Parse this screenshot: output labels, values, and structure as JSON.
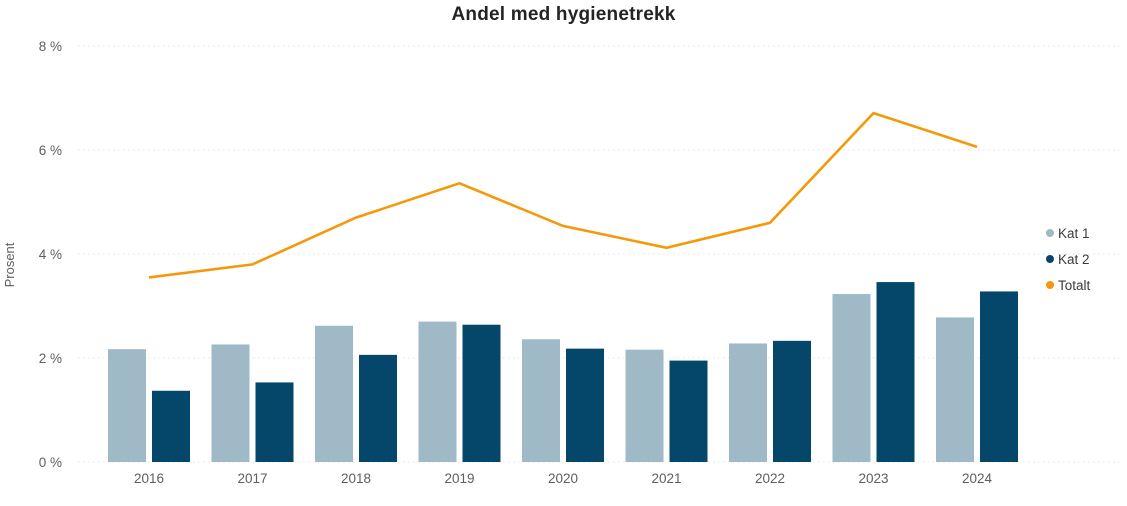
{
  "title": "Andel med hygienetrekk",
  "y_axis": {
    "label": "Prosent",
    "tick_labels": [
      "0 %",
      "2 %",
      "4 %",
      "6 %",
      "8 %"
    ]
  },
  "x_axis": {
    "tick_labels": [
      "2016",
      "2017",
      "2018",
      "2019",
      "2020",
      "2021",
      "2022",
      "2023",
      "2024"
    ]
  },
  "legend": {
    "items": [
      "Kat 1",
      "Kat 2",
      "Totalt"
    ]
  },
  "colors": {
    "kat1": "#9FB9C6",
    "kat2": "#05466B",
    "totalt": "#F5990B",
    "grid": "#E1E1E1",
    "axis_text": "#605E5C",
    "title_text": "#252423",
    "legend_text": "#3B3B3B"
  },
  "chart_data": {
    "type": "combo",
    "categories": [
      "2016",
      "2017",
      "2018",
      "2019",
      "2020",
      "2021",
      "2022",
      "2023",
      "2024"
    ],
    "series": [
      {
        "name": "Kat 1",
        "kind": "bar",
        "color": "#9FB9C6",
        "values": [
          2.17,
          2.26,
          2.62,
          2.7,
          2.36,
          2.16,
          2.28,
          3.23,
          2.78
        ]
      },
      {
        "name": "Kat 2",
        "kind": "bar",
        "color": "#05466B",
        "values": [
          1.37,
          1.53,
          2.06,
          2.64,
          2.18,
          1.95,
          2.33,
          3.46,
          3.28
        ]
      },
      {
        "name": "Totalt",
        "kind": "line",
        "color": "#F5990B",
        "values": [
          3.55,
          3.8,
          4.7,
          5.36,
          4.54,
          4.12,
          4.6,
          6.71,
          6.06
        ]
      }
    ],
    "title": "Andel med hygienetrekk",
    "xlabel": "",
    "ylabel": "Prosent",
    "ylim": [
      0,
      8
    ],
    "yticks": [
      0,
      2,
      4,
      6,
      8
    ],
    "ytick_format": "{v} %",
    "grid": "dotted-horizontal",
    "legend_position": "right"
  }
}
